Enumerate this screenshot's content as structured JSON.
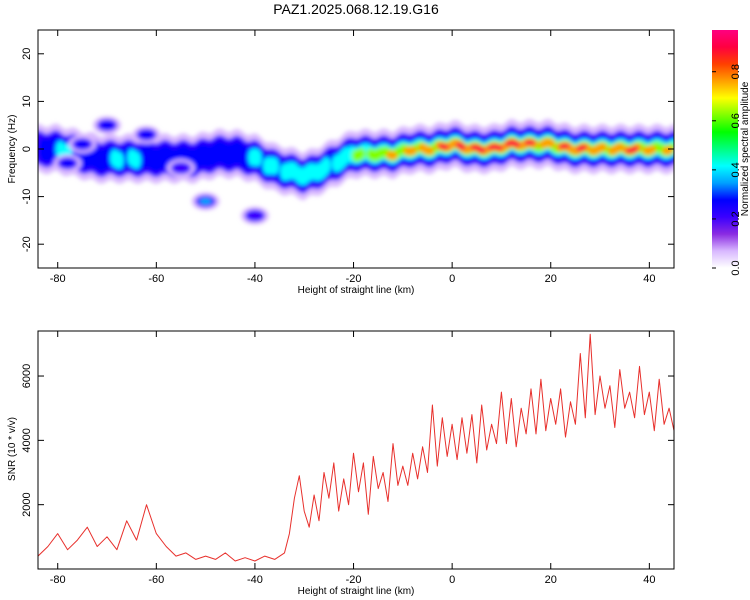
{
  "title": "PAZ1.2025.068.12.19.G16",
  "colorbar": {
    "label": "Normalized spectral amplitude",
    "range": [
      0,
      0.97
    ],
    "ticks": [
      0.0,
      0.2,
      0.4,
      0.6,
      0.8
    ],
    "tick_labels": [
      "0.0",
      "0.2",
      "0.4",
      "0.6",
      "0.8"
    ],
    "colors": [
      "#ffffff",
      "#d8b8ff",
      "#8a2be2",
      "#3a00ff",
      "#0000ff",
      "#00a0ff",
      "#00ffff",
      "#00ff80",
      "#00ff00",
      "#80ff00",
      "#ffff00",
      "#ffa000",
      "#ff4000",
      "#ff0040",
      "#ff0080"
    ]
  },
  "chart_data": [
    {
      "type": "heatmap",
      "xlabel": "Height of straight line (km)",
      "ylabel": "Frequency (Hz)",
      "xlim": [
        -84,
        45
      ],
      "ylim": [
        -25,
        25
      ],
      "xticks": [
        -80,
        -60,
        -40,
        -20,
        0,
        20,
        40
      ],
      "xtick_labels": [
        "-80",
        "-60",
        "-40",
        "-20",
        "0",
        "20",
        "40"
      ],
      "yticks": [
        -20,
        -10,
        0,
        10,
        20
      ],
      "ytick_labels": [
        "-20",
        "-10",
        "0",
        "10",
        "20"
      ],
      "ridge": {
        "x": [
          -84,
          -80,
          -76,
          -72,
          -68,
          -64,
          -60,
          -56,
          -52,
          -48,
          -44,
          -40,
          -36,
          -32,
          -30,
          -28,
          -24,
          -20,
          -16,
          -12,
          -8,
          -4,
          0,
          4,
          8,
          12,
          16,
          20,
          24,
          28,
          32,
          36,
          40,
          45
        ],
        "freq": [
          0,
          0,
          -1,
          -2,
          -2,
          -2,
          -2,
          -2,
          -2,
          -1,
          -1,
          -2,
          -4,
          -5,
          -5.5,
          -5,
          -3,
          -1,
          -1,
          -1,
          0,
          0,
          1,
          0,
          0,
          1,
          1,
          1,
          0,
          0,
          0,
          0,
          0,
          0
        ],
        "amplitude": [
          0.2,
          0.4,
          0.3,
          0.3,
          0.35,
          0.35,
          0.3,
          0.3,
          0.3,
          0.25,
          0.3,
          0.35,
          0.4,
          0.45,
          0.45,
          0.45,
          0.4,
          0.5,
          0.6,
          0.65,
          0.7,
          0.8,
          0.85,
          0.85,
          0.9,
          0.9,
          0.8,
          0.75,
          0.85,
          0.8,
          0.75,
          0.85,
          0.7,
          0.65
        ]
      },
      "secondary_features": [
        {
          "x": -70,
          "freq": 5,
          "amplitude": 0.3
        },
        {
          "x": -75,
          "freq": 1,
          "amplitude": 0.3
        },
        {
          "x": -62,
          "freq": 3,
          "amplitude": 0.25
        },
        {
          "x": -50,
          "freq": -11,
          "amplitude": 0.35
        },
        {
          "x": -40,
          "freq": -14,
          "amplitude": 0.2
        },
        {
          "x": -78,
          "freq": -3,
          "amplitude": 0.3
        },
        {
          "x": -55,
          "freq": -4,
          "amplitude": 0.2
        }
      ]
    },
    {
      "type": "line",
      "xlabel": "Height of straight line (km)",
      "ylabel": "SNR (10 * v/v)",
      "xlim": [
        -84,
        45
      ],
      "ylim": [
        0,
        7400
      ],
      "xticks": [
        -80,
        -60,
        -40,
        -20,
        0,
        20,
        40
      ],
      "xtick_labels": [
        "-80",
        "-60",
        "-40",
        "-20",
        "0",
        "20",
        "40"
      ],
      "yticks": [
        2000,
        4000,
        6000
      ],
      "ytick_labels": [
        "2000",
        "4000",
        "6000"
      ],
      "series": [
        {
          "color": "#e8302c",
          "x": [
            -84,
            -82,
            -80,
            -78,
            -76,
            -74,
            -72,
            -70,
            -68,
            -66,
            -64,
            -62,
            -60,
            -58,
            -56,
            -54,
            -52,
            -50,
            -48,
            -46,
            -44,
            -42,
            -40,
            -38,
            -36,
            -34,
            -33,
            -32,
            -31,
            -30,
            -29,
            -28,
            -27,
            -26,
            -25,
            -24,
            -23,
            -22,
            -21,
            -20,
            -19,
            -18,
            -17,
            -16,
            -15,
            -14,
            -13,
            -12,
            -11,
            -10,
            -9,
            -8,
            -7,
            -6,
            -5,
            -4,
            -3,
            -2,
            -1,
            0,
            1,
            2,
            3,
            4,
            5,
            6,
            7,
            8,
            9,
            10,
            11,
            12,
            13,
            14,
            15,
            16,
            17,
            18,
            19,
            20,
            21,
            22,
            23,
            24,
            25,
            26,
            27,
            28,
            29,
            30,
            31,
            32,
            33,
            34,
            35,
            36,
            37,
            38,
            39,
            40,
            41,
            42,
            43,
            44,
            45
          ],
          "y": [
            400,
            700,
            1100,
            600,
            900,
            1300,
            700,
            1000,
            600,
            1500,
            900,
            2000,
            1100,
            700,
            400,
            500,
            300,
            400,
            300,
            500,
            250,
            350,
            250,
            400,
            300,
            500,
            1100,
            2200,
            2900,
            1800,
            1300,
            2300,
            1500,
            3000,
            2200,
            3300,
            1800,
            2800,
            2000,
            3600,
            2400,
            3300,
            1700,
            3500,
            2500,
            3000,
            2100,
            3900,
            2600,
            3200,
            2600,
            3600,
            2800,
            3800,
            3000,
            5100,
            3200,
            4700,
            3500,
            4500,
            3400,
            4700,
            3600,
            4800,
            3300,
            5100,
            3700,
            4500,
            3900,
            5500,
            3900,
            5300,
            3800,
            5000,
            4200,
            5600,
            4200,
            5900,
            4300,
            5300,
            4500,
            5600,
            4100,
            5200,
            4500,
            6700,
            4700,
            7300,
            4800,
            6000,
            5000,
            5700,
            4400,
            6200,
            5000,
            5500,
            4700,
            6300,
            4800,
            5500,
            4300,
            5900,
            4500,
            5000,
            4300
          ]
        }
      ]
    }
  ]
}
